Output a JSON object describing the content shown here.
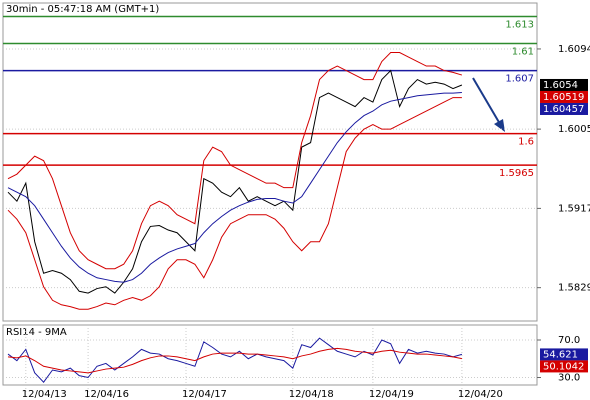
{
  "chart_data": [
    {
      "type": "line",
      "title": "30min - 05:47:18 AM (GMT+1)",
      "ylim": [
        1.5792,
        1.6145
      ],
      "yticks": [
        1.6094,
        1.6005,
        1.5917,
        1.5829
      ],
      "grid": true,
      "levels": [
        {
          "value": 1.613,
          "color": "#2e8b2e"
        },
        {
          "value": 1.61,
          "color": "#2e8b2e"
        },
        {
          "value": 1.607,
          "color": "#1a1aa0"
        },
        {
          "value": 1.6,
          "color": "#d40000"
        },
        {
          "value": 1.5965,
          "color": "#d40000"
        }
      ],
      "markers": [
        {
          "value": 1.6054,
          "color": "#000000"
        },
        {
          "value": 1.60519,
          "color": "#d40000"
        },
        {
          "value": 1.60457,
          "color": "#1a1aa0"
        }
      ],
      "series": [
        {
          "color": "#000000",
          "values": [
            1.5935,
            1.5925,
            1.5945,
            1.588,
            1.5845,
            1.5848,
            1.5845,
            1.5838,
            1.5825,
            1.5823,
            1.5828,
            1.583,
            1.5823,
            1.5835,
            1.585,
            1.588,
            1.5897,
            1.5898,
            1.5893,
            1.589,
            1.588,
            1.587,
            1.595,
            1.5945,
            1.5935,
            1.593,
            1.594,
            1.5925,
            1.593,
            1.5925,
            1.592,
            1.5925,
            1.5915,
            1.5985,
            1.599,
            1.604,
            1.6045,
            1.604,
            1.6035,
            1.603,
            1.604,
            1.6035,
            1.606,
            1.607,
            1.603,
            1.605,
            1.606,
            1.6055,
            1.6057,
            1.6055,
            1.605,
            1.6054
          ]
        },
        {
          "color": "#d40000",
          "values": [
            1.595,
            1.5955,
            1.5965,
            1.5975,
            1.597,
            1.595,
            1.592,
            1.589,
            1.587,
            1.586,
            1.5855,
            1.585,
            1.585,
            1.5855,
            1.587,
            1.59,
            1.592,
            1.5925,
            1.592,
            1.591,
            1.5905,
            1.59,
            1.597,
            1.5985,
            1.598,
            1.5965,
            1.596,
            1.5955,
            1.595,
            1.5945,
            1.5945,
            1.594,
            1.594,
            1.599,
            1.602,
            1.606,
            1.607,
            1.6075,
            1.607,
            1.6065,
            1.606,
            1.606,
            1.608,
            1.609,
            1.609,
            1.6085,
            1.608,
            1.6075,
            1.6075,
            1.607,
            1.6068,
            1.6065
          ]
        },
        {
          "color": "#d40000",
          "values": [
            1.5915,
            1.5905,
            1.589,
            1.586,
            1.583,
            1.5815,
            1.581,
            1.5808,
            1.5805,
            1.5805,
            1.5808,
            1.5812,
            1.581,
            1.5815,
            1.5818,
            1.5815,
            1.582,
            1.583,
            1.585,
            1.586,
            1.586,
            1.5855,
            1.584,
            1.586,
            1.5885,
            1.59,
            1.5905,
            1.591,
            1.591,
            1.591,
            1.5905,
            1.5895,
            1.588,
            1.587,
            1.588,
            1.588,
            1.59,
            1.594,
            1.598,
            1.5995,
            1.6005,
            1.601,
            1.6005,
            1.6005,
            1.601,
            1.6015,
            1.602,
            1.6025,
            1.603,
            1.6035,
            1.604,
            1.604
          ]
        },
        {
          "color": "#1a1aa0",
          "values": [
            1.594,
            1.5935,
            1.593,
            1.592,
            1.5905,
            1.589,
            1.5875,
            1.5862,
            1.5852,
            1.5845,
            1.584,
            1.5838,
            1.5836,
            1.5835,
            1.5838,
            1.5845,
            1.5855,
            1.5862,
            1.5868,
            1.5872,
            1.5875,
            1.5878,
            1.589,
            1.59,
            1.5908,
            1.5915,
            1.592,
            1.5924,
            1.5927,
            1.5928,
            1.5928,
            1.5925,
            1.5923,
            1.593,
            1.5945,
            1.596,
            1.5975,
            1.599,
            1.6002,
            1.6012,
            1.602,
            1.6025,
            1.6032,
            1.6036,
            1.6038,
            1.604,
            1.6042,
            1.6043,
            1.6044,
            1.6045,
            1.6045,
            1.60457
          ]
        }
      ]
    },
    {
      "type": "line",
      "title": "RSI14 - 9MA",
      "ylim": [
        22,
        86
      ],
      "yticks": [
        {
          "value": 70,
          "label": "70.0"
        },
        {
          "value": 30,
          "label": "30.0"
        }
      ],
      "grid": true,
      "markers": [
        {
          "value": 54.621,
          "color": "#1a1aa0"
        },
        {
          "value": 50.1042,
          "color": "#d40000"
        }
      ],
      "categories": [
        null,
        null,
        "12/04/13",
        null,
        null,
        null,
        null,
        null,
        null,
        "12/04/16",
        null,
        null,
        null,
        null,
        null,
        null,
        null,
        null,
        null,
        null,
        "12/04/17",
        null,
        null,
        null,
        null,
        null,
        null,
        null,
        null,
        null,
        null,
        null,
        "12/04/18",
        null,
        null,
        null,
        null,
        null,
        null,
        null,
        null,
        "12/04/19",
        null,
        null,
        null,
        null,
        null,
        null,
        null,
        null,
        null,
        "12/04/20"
      ],
      "series": [
        {
          "color": "#1a1aa0",
          "values": [
            55,
            48,
            60,
            35,
            25,
            38,
            36,
            40,
            32,
            30,
            42,
            45,
            38,
            45,
            52,
            60,
            56,
            55,
            50,
            48,
            45,
            42,
            68,
            62,
            55,
            52,
            58,
            50,
            55,
            52,
            50,
            48,
            40,
            65,
            62,
            72,
            65,
            58,
            55,
            52,
            58,
            54,
            70,
            66,
            45,
            60,
            56,
            58,
            56,
            55,
            52,
            54.621
          ]
        },
        {
          "color": "#d40000",
          "values": [
            52,
            51,
            53,
            48,
            42,
            40,
            38,
            37,
            36,
            35,
            37,
            39,
            40,
            41,
            44,
            48,
            51,
            53,
            53,
            52,
            50,
            48,
            52,
            55,
            56,
            56,
            56,
            55,
            55,
            54,
            53,
            52,
            50,
            53,
            55,
            58,
            60,
            61,
            60,
            58,
            57,
            56,
            58,
            59,
            57,
            56,
            55,
            55,
            54,
            53,
            52,
            50.1042
          ]
        }
      ]
    }
  ]
}
